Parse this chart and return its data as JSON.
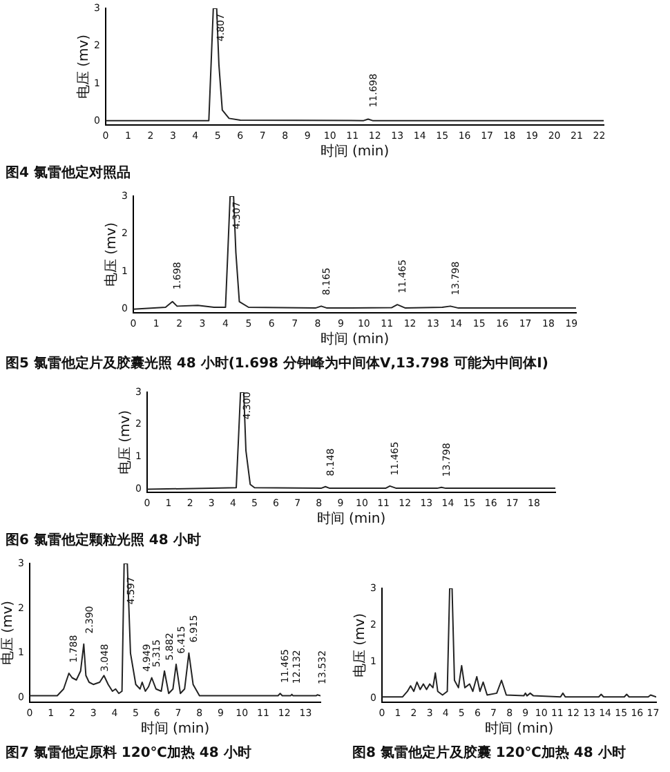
{
  "chart_data": [
    {
      "type": "line",
      "title": "图4  氯雷他定对照品",
      "xlabel": "时间 (min)",
      "ylabel": "电压 (mv)",
      "xlim": [
        0,
        22.2
      ],
      "ylim": [
        -0.1,
        3
      ],
      "xticks": [
        0,
        1,
        2,
        3,
        4,
        5,
        6,
        7,
        8,
        9,
        10,
        11,
        12,
        13,
        14,
        15,
        16,
        17,
        18,
        19,
        20,
        21,
        22
      ],
      "yticks": [
        0,
        1,
        2,
        3
      ],
      "grid": false,
      "legend": false,
      "marker": "none",
      "series": [
        {
          "color": "#222222",
          "x": [
            0,
            4.6,
            4.7,
            4.8,
            4.95,
            5.05,
            5.2,
            5.5,
            6,
            11.5,
            11.7,
            11.9,
            22.2
          ],
          "values": [
            0.02,
            0.02,
            1.5,
            3,
            3,
            1.5,
            0.3,
            0.08,
            0.03,
            0.02,
            0.06,
            0.02,
            0.02
          ]
        }
      ],
      "annotations": [
        {
          "text": "4.807",
          "x": 4.9,
          "y": 1.9
        },
        {
          "text": "11.698",
          "x": 11.7,
          "y": 0.15
        }
      ]
    },
    {
      "type": "line",
      "title": "图5  氯雷他定片及胶囊光照 48 小时(1.698 分钟峰为中间体Ⅴ,13.798 可能为中间体Ⅰ)",
      "xlabel": "时间 (min)",
      "ylabel": "电压 (mv)",
      "xlim": [
        0,
        19.2
      ],
      "ylim": [
        -0.1,
        3
      ],
      "xticks": [
        0,
        1,
        2,
        3,
        4,
        5,
        6,
        7,
        8,
        9,
        10,
        11,
        12,
        13,
        14,
        15,
        16,
        17,
        18,
        19
      ],
      "yticks": [
        0,
        1,
        2,
        3
      ],
      "grid": false,
      "legend": false,
      "marker": "none",
      "series": [
        {
          "color": "#222222",
          "x": [
            0,
            1.4,
            1.7,
            1.9,
            2.8,
            3.5,
            4.0,
            4.1,
            4.2,
            4.35,
            4.45,
            4.6,
            5,
            7.9,
            8.15,
            8.4,
            11.2,
            11.45,
            11.8,
            13.4,
            13.75,
            14.1,
            19.2
          ],
          "values": [
            0,
            0.05,
            0.2,
            0.08,
            0.1,
            0.05,
            0.05,
            1.5,
            3,
            3,
            1.5,
            0.2,
            0.05,
            0.03,
            0.08,
            0.03,
            0.04,
            0.12,
            0.03,
            0.05,
            0.08,
            0.03,
            0.03
          ]
        }
      ],
      "annotations": [
        {
          "text": "1.698",
          "x": 1.7,
          "y": 0.3
        },
        {
          "text": "4.307",
          "x": 4.28,
          "y": 1.9
        },
        {
          "text": "8.165",
          "x": 8.15,
          "y": 0.15
        },
        {
          "text": "11.465",
          "x": 11.45,
          "y": 0.2
        },
        {
          "text": "13.798",
          "x": 13.75,
          "y": 0.15
        }
      ]
    },
    {
      "type": "line",
      "title": "图6  氯雷他定颗粒光照 48 小时",
      "xlabel": "时间 (min)",
      "ylabel": "电压 (mv)",
      "xlim": [
        0,
        19
      ],
      "ylim": [
        -0.1,
        3
      ],
      "xticks": [
        0,
        1,
        2,
        3,
        4,
        5,
        6,
        7,
        8,
        9,
        10,
        11,
        12,
        13,
        14,
        15,
        16,
        17,
        18
      ],
      "yticks": [
        0,
        1,
        2,
        3
      ],
      "grid": false,
      "legend": false,
      "marker": "none",
      "series": [
        {
          "color": "#222222",
          "x": [
            0,
            3,
            4.15,
            4.25,
            4.35,
            4.5,
            4.6,
            4.8,
            5,
            8.1,
            8.3,
            8.5,
            11.1,
            11.3,
            11.6,
            13.5,
            13.7,
            13.9,
            19
          ],
          "values": [
            0,
            0.03,
            0.05,
            1.5,
            3,
            3,
            1.2,
            0.15,
            0.05,
            0.03,
            0.08,
            0.03,
            0.03,
            0.1,
            0.03,
            0.03,
            0.06,
            0.03,
            0.03
          ]
        }
      ],
      "annotations": [
        {
          "text": "4.300",
          "x": 4.42,
          "y": 1.9
        },
        {
          "text": "8.148",
          "x": 8.3,
          "y": 0.15
        },
        {
          "text": "11.465",
          "x": 11.3,
          "y": 0.17
        },
        {
          "text": "13.798",
          "x": 13.7,
          "y": 0.13
        }
      ]
    },
    {
      "type": "line",
      "title": "图7  氯雷他定原料 120℃加热 48 小时",
      "xlabel": "时间 (min)",
      "ylabel": "电压 (mv)",
      "xlim": [
        0,
        13.7
      ],
      "ylim": [
        -0.1,
        3
      ],
      "xticks": [
        0,
        1,
        2,
        3,
        4,
        5,
        6,
        7,
        8,
        9,
        10,
        11,
        12,
        13
      ],
      "yticks": [
        0,
        1,
        2,
        3
      ],
      "grid": false,
      "legend": false,
      "marker": "none",
      "series": [
        {
          "color": "#222222",
          "x": [
            0,
            1.3,
            1.6,
            1.85,
            2.0,
            2.2,
            2.4,
            2.55,
            2.65,
            2.8,
            3.0,
            3.3,
            3.5,
            3.7,
            3.9,
            4.05,
            4.2,
            4.35,
            4.45,
            4.6,
            4.75,
            5.0,
            5.2,
            5.3,
            5.45,
            5.6,
            5.75,
            5.95,
            6.2,
            6.35,
            6.55,
            6.75,
            6.9,
            7.1,
            7.3,
            7.5,
            7.7,
            8.0,
            11.7,
            11.8,
            11.9,
            12.3,
            12.35,
            12.4,
            13.5,
            13.55,
            13.7
          ],
          "values": [
            0.05,
            0.05,
            0.2,
            0.55,
            0.45,
            0.4,
            0.6,
            1.2,
            0.5,
            0.35,
            0.3,
            0.35,
            0.5,
            0.3,
            0.15,
            0.2,
            0.1,
            0.15,
            3,
            3,
            1,
            0.3,
            0.2,
            0.35,
            0.15,
            0.25,
            0.45,
            0.2,
            0.15,
            0.6,
            0.1,
            0.2,
            0.75,
            0.1,
            0.2,
            1,
            0.3,
            0.05,
            0.05,
            0.1,
            0.05,
            0.05,
            0.08,
            0.05,
            0.05,
            0.07,
            0.05
          ]
        }
      ],
      "annotations": [
        {
          "text": "1.788",
          "x": 1.85,
          "y": 0.6
        },
        {
          "text": "2.390",
          "x": 2.6,
          "y": 1.25
        },
        {
          "text": "3.048",
          "x": 3.3,
          "y": 0.4
        },
        {
          "text": "4.597",
          "x": 4.55,
          "y": 1.9
        },
        {
          "text": "4.949",
          "x": 5.3,
          "y": 0.4
        },
        {
          "text": "5.315",
          "x": 5.75,
          "y": 0.5
        },
        {
          "text": "5.882",
          "x": 6.35,
          "y": 0.65
        },
        {
          "text": "6.415",
          "x": 6.9,
          "y": 0.8
        },
        {
          "text": "6.915",
          "x": 7.5,
          "y": 1.05
        },
        {
          "text": "11.465",
          "x": 11.8,
          "y": 0.15
        },
        {
          "text": "12.132",
          "x": 12.35,
          "y": 0.13
        },
        {
          "text": "13.532",
          "x": 13.55,
          "y": 0.12
        }
      ]
    },
    {
      "type": "line",
      "title": "图8  氯雷他定片及胶囊 120℃加热 48 小时",
      "xlabel": "时间 (min)",
      "ylabel": "电压 (mv)",
      "xlim": [
        0,
        17.2
      ],
      "ylim": [
        -0.1,
        3
      ],
      "xticks": [
        0,
        1,
        2,
        3,
        4,
        5,
        6,
        7,
        8,
        9,
        10,
        11,
        12,
        13,
        14,
        15,
        16,
        17
      ],
      "yticks": [
        0,
        1,
        2,
        3
      ],
      "grid": false,
      "legend": false,
      "marker": "none",
      "series": [
        {
          "color": "#222222",
          "x": [
            0,
            1.3,
            1.6,
            1.8,
            2.0,
            2.2,
            2.4,
            2.6,
            2.8,
            3.0,
            3.2,
            3.35,
            3.5,
            3.8,
            4.1,
            4.25,
            4.4,
            4.55,
            4.8,
            5.0,
            5.2,
            5.5,
            5.7,
            5.95,
            6.15,
            6.35,
            6.6,
            7.2,
            7.5,
            7.8,
            8.9,
            9.0,
            9.1,
            9.3,
            9.5,
            11.2,
            11.35,
            11.5,
            13.6,
            13.75,
            13.9,
            15.2,
            15.35,
            15.5,
            16.7,
            16.85,
            17.2
          ],
          "values": [
            0.05,
            0.05,
            0.2,
            0.35,
            0.2,
            0.45,
            0.25,
            0.4,
            0.25,
            0.4,
            0.3,
            0.7,
            0.2,
            0.1,
            0.2,
            3,
            3,
            0.5,
            0.3,
            0.9,
            0.3,
            0.4,
            0.2,
            0.6,
            0.2,
            0.45,
            0.1,
            0.15,
            0.5,
            0.1,
            0.08,
            0.15,
            0.08,
            0.15,
            0.08,
            0.05,
            0.15,
            0.05,
            0.05,
            0.12,
            0.05,
            0.05,
            0.12,
            0.05,
            0.05,
            0.1,
            0.05
          ]
        }
      ]
    }
  ]
}
